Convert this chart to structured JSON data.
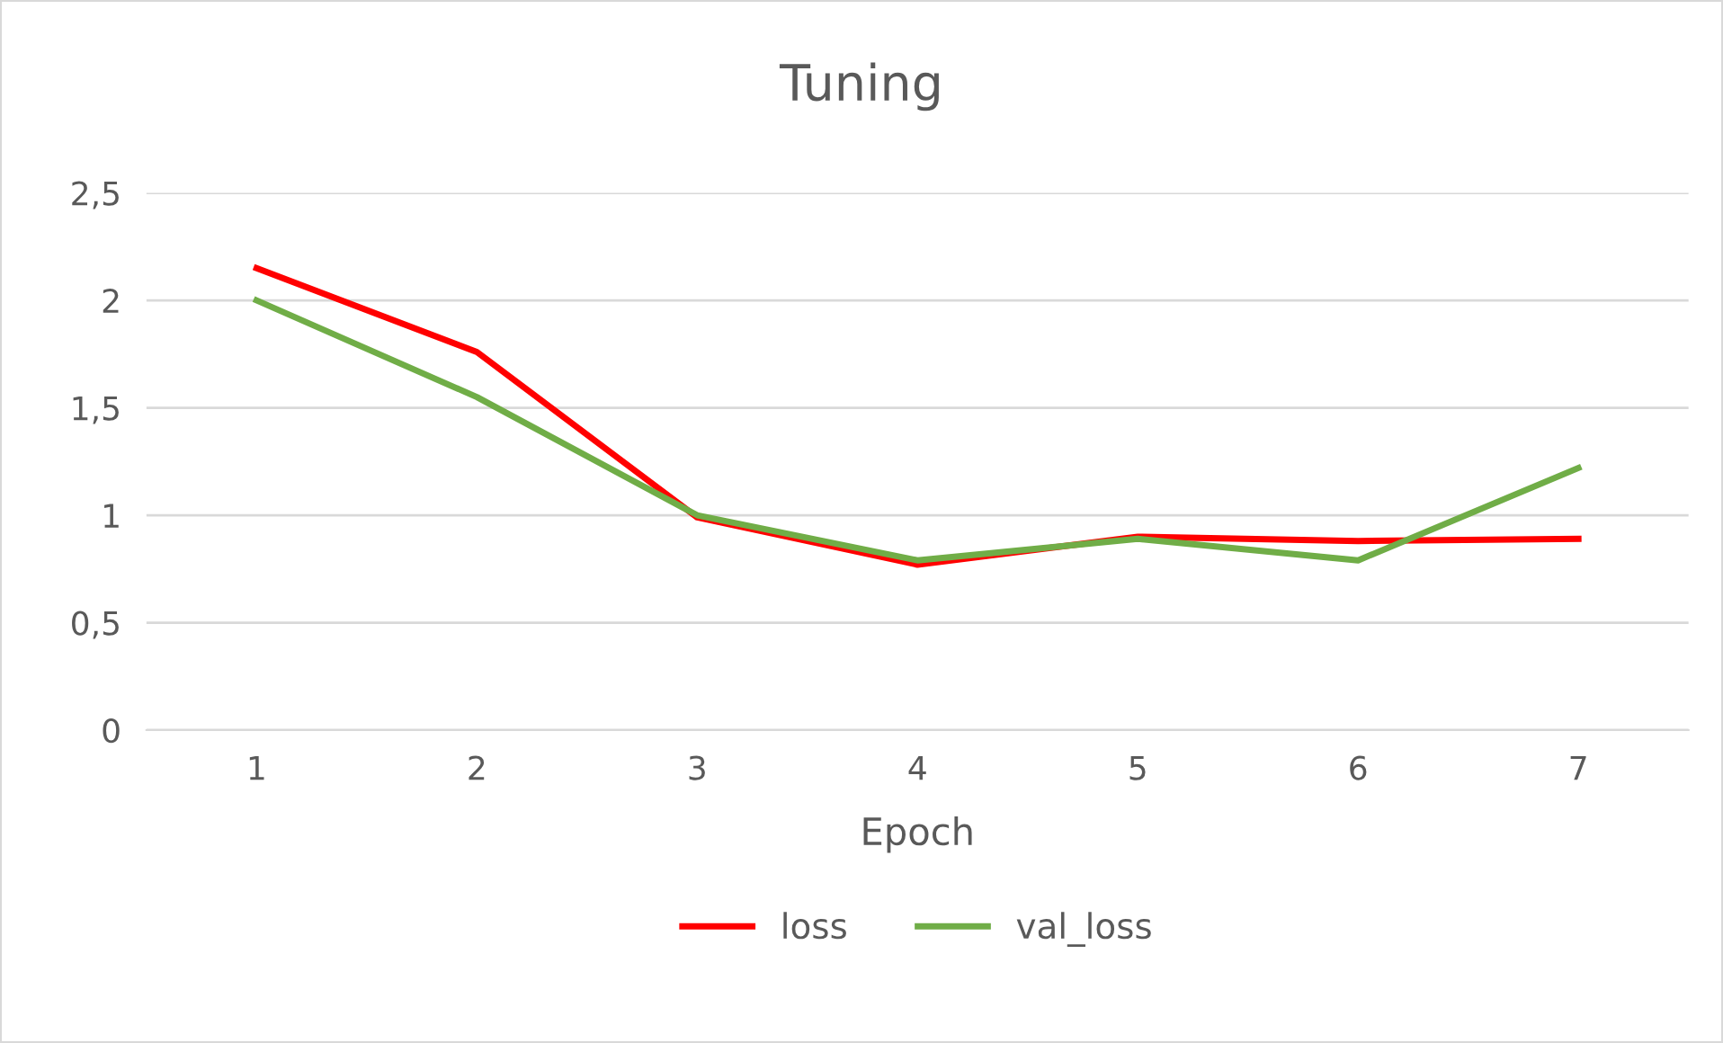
{
  "chart_data": {
    "type": "line",
    "title": "Tuning",
    "xlabel": "Epoch",
    "categories": [
      "1",
      "2",
      "3",
      "4",
      "5",
      "6",
      "7"
    ],
    "series": [
      {
        "name": "loss",
        "color": "#ff0000",
        "values": [
          2.15,
          1.76,
          0.99,
          0.77,
          0.9,
          0.88,
          0.89
        ]
      },
      {
        "name": "val_loss",
        "color": "#70ad47",
        "values": [
          2.0,
          1.55,
          1.0,
          0.79,
          0.89,
          0.79,
          1.22
        ]
      }
    ],
    "ylim": [
      0,
      2.5
    ],
    "yticks": [
      0,
      {
        "value": 0.5,
        "label": "0,5"
      },
      1,
      {
        "value": 1.5,
        "label": "1,5"
      },
      2,
      {
        "value": 2.5,
        "label": "2,5"
      }
    ],
    "grid": "y",
    "legend": "bottom",
    "marker": "none",
    "line_style": "solid"
  }
}
